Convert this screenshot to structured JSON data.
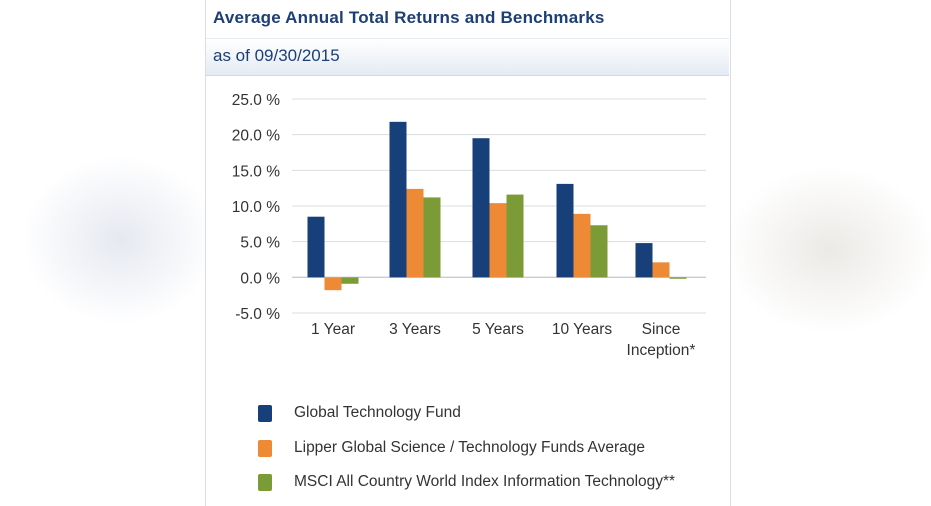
{
  "header": {
    "title": "Average Annual Total Returns and Benchmarks",
    "subtitle": "as of 09/30/2015"
  },
  "colors": {
    "fund": "#173f7a",
    "lipper": "#ee8a36",
    "msci": "#7a9b35",
    "grid": "#d9dde3",
    "tick_text": "#333333"
  },
  "chart_data": {
    "type": "bar",
    "title": "Average Annual Total Returns and Benchmarks",
    "subtitle": "as of 09/30/2015",
    "categories": [
      "1 Year",
      "3 Years",
      "5 Years",
      "10 Years",
      "Since Inception*"
    ],
    "category_lines": [
      [
        "1 Year"
      ],
      [
        "3 Years"
      ],
      [
        "5 Years"
      ],
      [
        "10 Years"
      ],
      [
        "Since",
        "Inception*"
      ]
    ],
    "series": [
      {
        "name": "Global Technology Fund",
        "color": "#173f7a",
        "values": [
          8.5,
          21.8,
          19.5,
          13.1,
          4.8
        ]
      },
      {
        "name": "Lipper Global Science / Technology Funds Average",
        "color": "#ee8a36",
        "values": [
          -1.8,
          12.4,
          10.4,
          8.9,
          2.1
        ]
      },
      {
        "name": "MSCI All Country World Index Information Technology**",
        "color": "#7a9b35",
        "values": [
          -0.9,
          11.2,
          11.6,
          7.3,
          -0.2
        ]
      }
    ],
    "ylim": [
      -5,
      25
    ],
    "yticks": [
      25,
      20,
      15,
      10,
      5,
      0,
      -5
    ],
    "ytick_labels": [
      "25.0 %",
      "20.0 %",
      "15.0 %",
      "10.0 %",
      "5.0 %",
      "0.0 %",
      "-5.0 %"
    ],
    "grid": true,
    "legend_position": "bottom"
  }
}
